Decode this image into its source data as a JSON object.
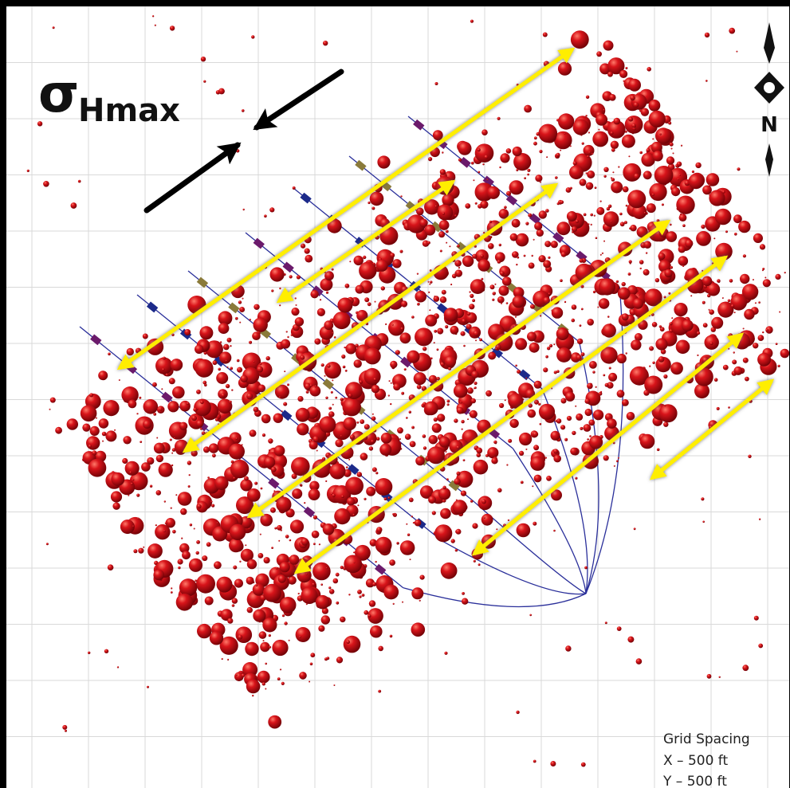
{
  "label": {
    "symbol": "σ",
    "subscript": "Hmax"
  },
  "compass": {
    "north": "N"
  },
  "legend": {
    "title": "Grid Spacing",
    "lines": [
      "X – 500 ft",
      "Y – 500 ft"
    ]
  }
}
